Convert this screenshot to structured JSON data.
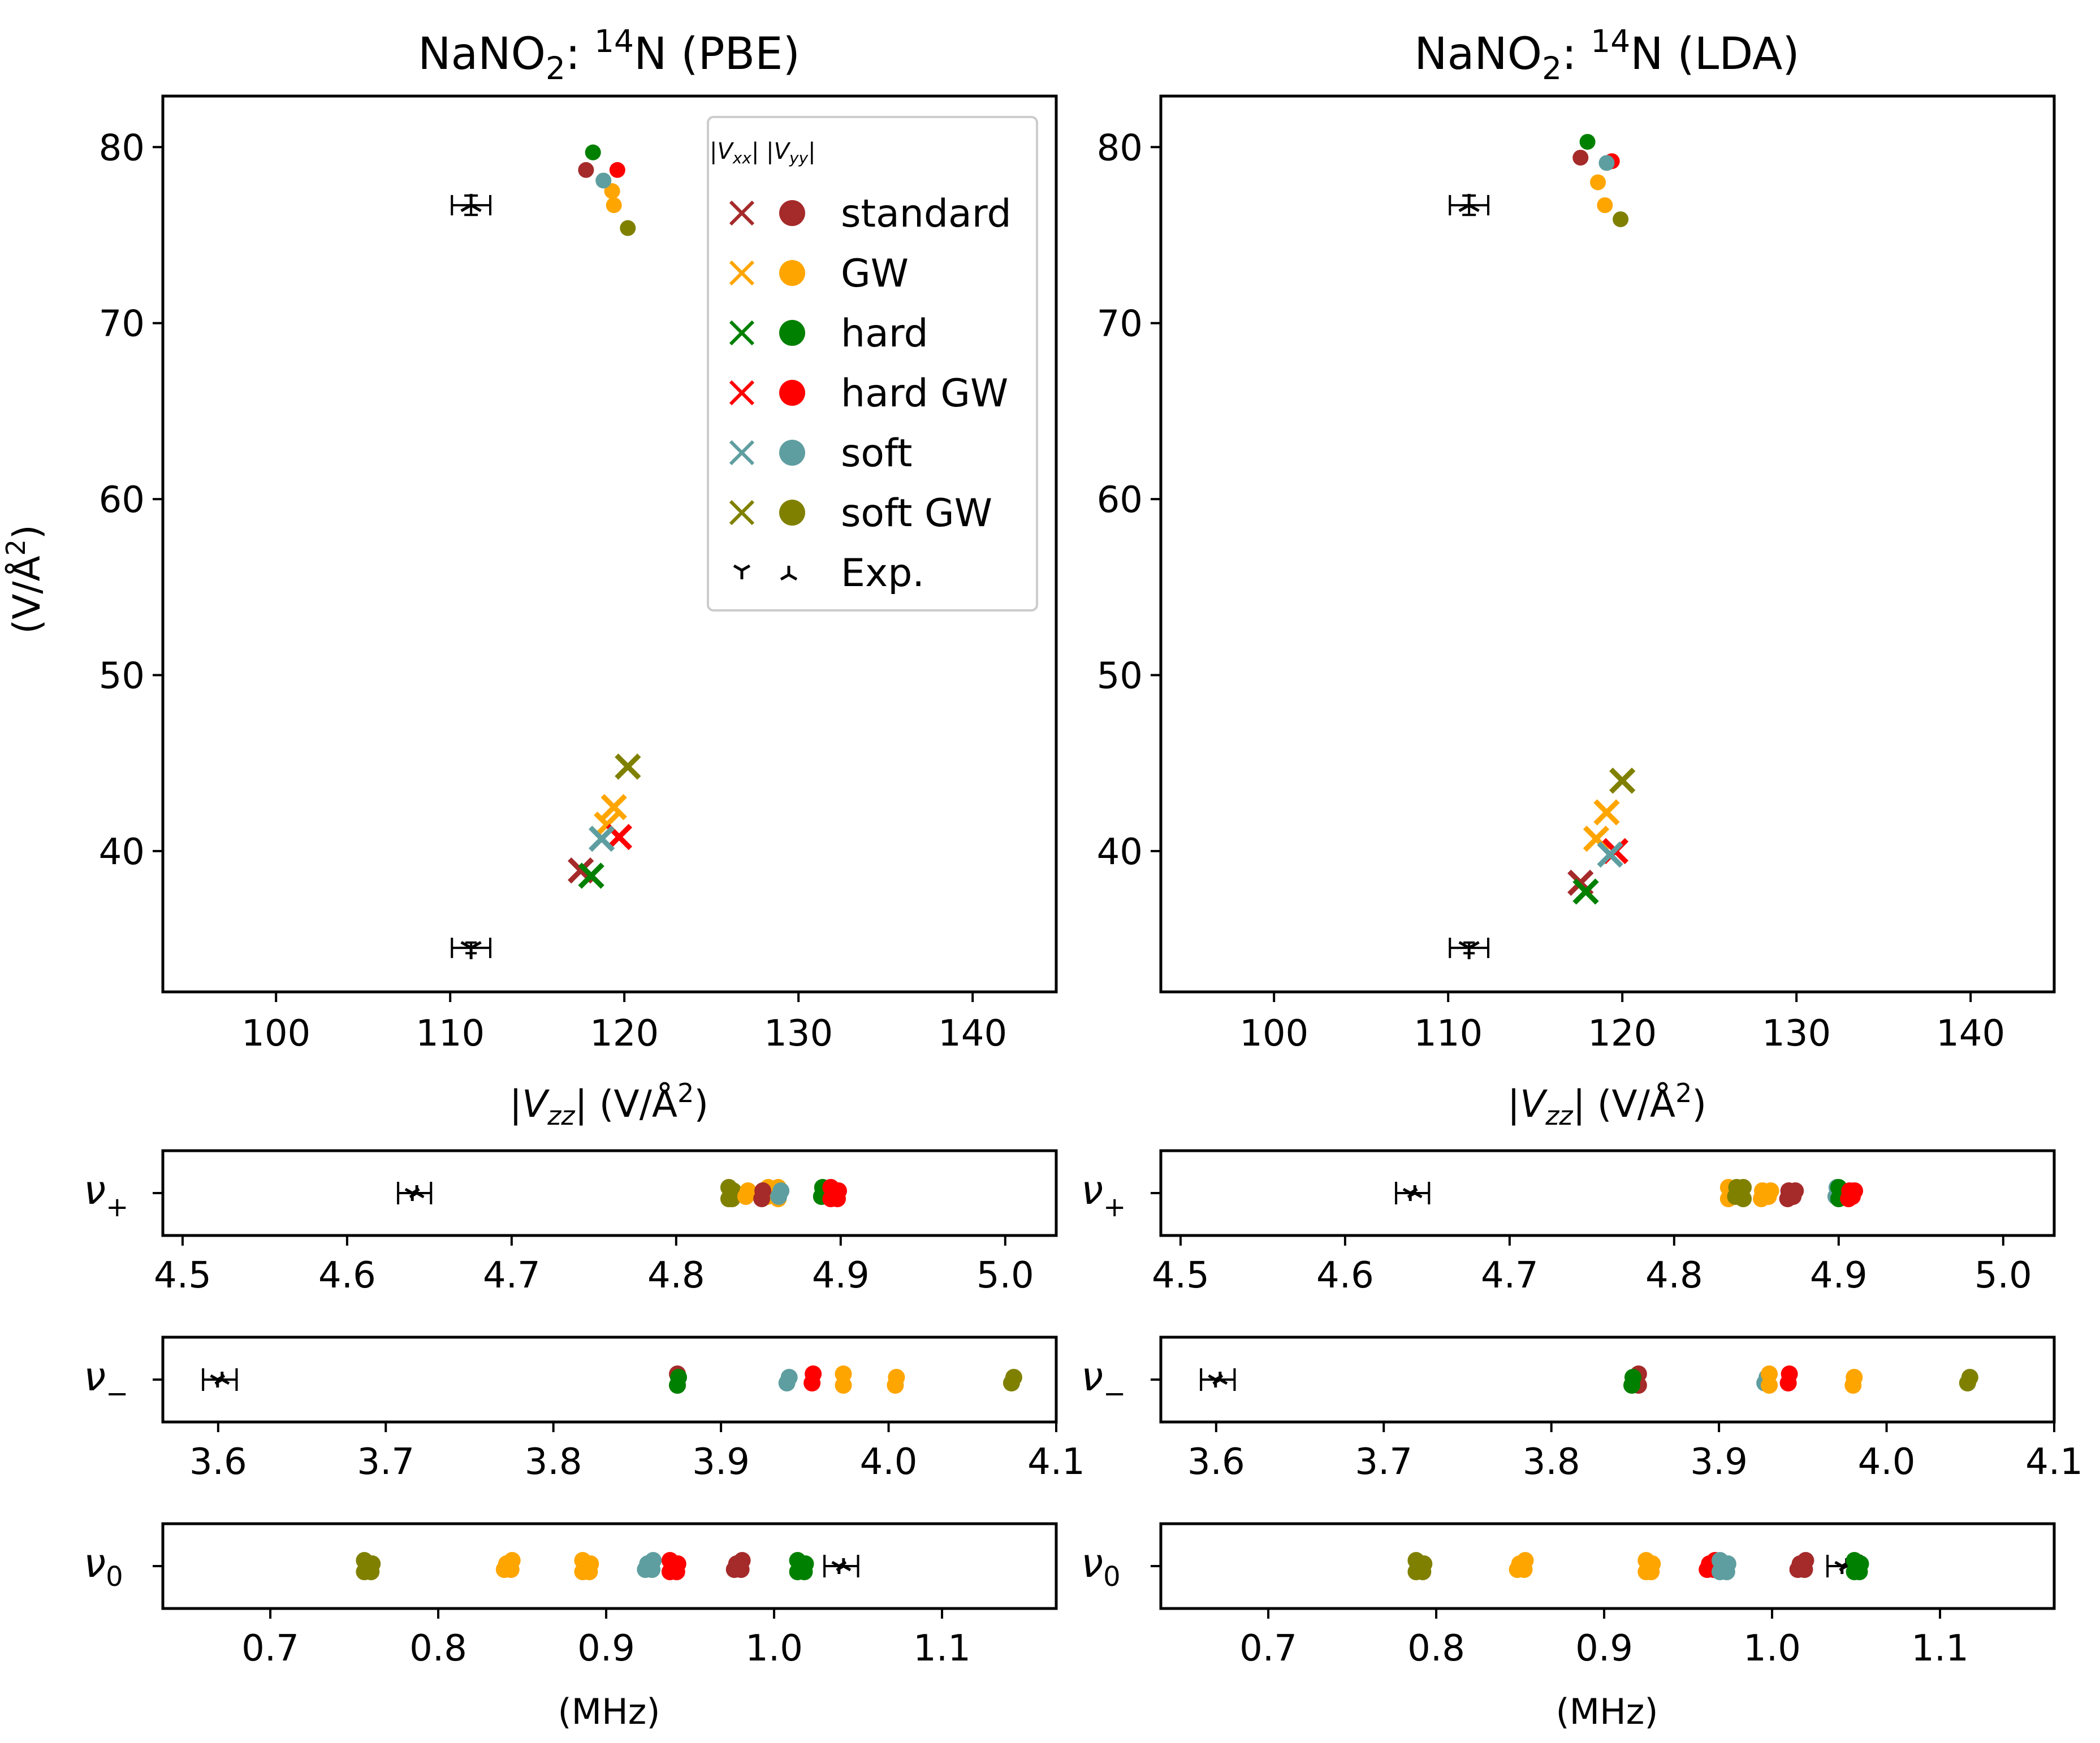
{
  "figure": {
    "legend": {
      "header": "|V_xx| |V_yy|",
      "entries": [
        {
          "label": "standard",
          "color": "#a52a2a"
        },
        {
          "label": "GW",
          "color": "#ffa500"
        },
        {
          "label": "hard",
          "color": "#008000"
        },
        {
          "label": "hard GW",
          "color": "#ff0000"
        },
        {
          "label": "soft",
          "color": "#5f9ea0"
        },
        {
          "label": "soft GW",
          "color": "#808000"
        },
        {
          "label": "Exp.",
          "color": "#000000"
        }
      ]
    }
  },
  "chart_data": [
    {
      "id": "pbe-main",
      "type": "scatter",
      "title": "NaNO2: 14N (PBE)",
      "xlabel": "|Vzz| (V/Å2)",
      "ylabel": "(V/Å2)",
      "xlim": [
        93.5,
        144.8
      ],
      "ylim": [
        32.0,
        82.9
      ],
      "xticks": [
        100,
        110,
        120,
        130,
        140
      ],
      "yticks": [
        40,
        50,
        60,
        70,
        80
      ],
      "series": [
        {
          "name": "standard",
          "color": "#a52a2a",
          "vxx": [
            [
              117.5,
              38.9
            ]
          ],
          "vyy": [
            [
              117.8,
              78.7
            ]
          ]
        },
        {
          "name": "GW",
          "color": "#ffa500",
          "vxx": [
            [
              119.4,
              42.5
            ],
            [
              119.0,
              41.5
            ]
          ],
          "vyy": [
            [
              119.3,
              77.5
            ],
            [
              119.4,
              76.7
            ]
          ]
        },
        {
          "name": "hard",
          "color": "#008000",
          "vxx": [
            [
              118.1,
              38.6
            ]
          ],
          "vyy": [
            [
              118.2,
              79.7
            ]
          ]
        },
        {
          "name": "hard GW",
          "color": "#ff0000",
          "vxx": [
            [
              119.7,
              40.8
            ]
          ],
          "vyy": [
            [
              119.6,
              78.7
            ]
          ]
        },
        {
          "name": "soft",
          "color": "#5f9ea0",
          "vxx": [
            [
              118.7,
              40.7
            ]
          ],
          "vyy": [
            [
              118.8,
              78.1
            ]
          ]
        },
        {
          "name": "soft GW",
          "color": "#808000",
          "vxx": [
            [
              120.2,
              44.8
            ]
          ],
          "vyy": [
            [
              120.2,
              75.4
            ]
          ]
        }
      ],
      "experiment": {
        "vzz": 111.2,
        "vzz_err": 1.1,
        "vyy": 76.7,
        "vyy_err": 0.55,
        "vxx": 34.5,
        "vxx_err": 0.3
      }
    },
    {
      "id": "lda-main",
      "type": "scatter",
      "title": "NaNO2: 14N (LDA)",
      "xlabel": "|Vzz| (V/Å2)",
      "xlim": [
        93.5,
        144.8
      ],
      "ylim": [
        32.0,
        82.9
      ],
      "xticks": [
        100,
        110,
        120,
        130,
        140
      ],
      "yticks": [
        40,
        50,
        60,
        70,
        80
      ],
      "series": [
        {
          "name": "standard",
          "color": "#a52a2a",
          "vxx": [
            [
              117.6,
              38.2
            ]
          ],
          "vyy": [
            [
              117.6,
              79.4
            ]
          ]
        },
        {
          "name": "GW",
          "color": "#ffa500",
          "vxx": [
            [
              119.1,
              42.2
            ],
            [
              118.5,
              40.7
            ]
          ],
          "vyy": [
            [
              118.6,
              78.0
            ],
            [
              119.0,
              76.7
            ]
          ]
        },
        {
          "name": "hard",
          "color": "#008000",
          "vxx": [
            [
              117.9,
              37.7
            ]
          ],
          "vyy": [
            [
              118.0,
              80.3
            ]
          ]
        },
        {
          "name": "hard GW",
          "color": "#ff0000",
          "vxx": [
            [
              119.6,
              40.0
            ]
          ],
          "vyy": [
            [
              119.4,
              79.2
            ]
          ]
        },
        {
          "name": "soft",
          "color": "#5f9ea0",
          "vxx": [
            [
              119.3,
              39.8
            ]
          ],
          "vyy": [
            [
              119.1,
              79.1
            ]
          ]
        },
        {
          "name": "soft GW",
          "color": "#808000",
          "vxx": [
            [
              120.0,
              44.0
            ]
          ],
          "vyy": [
            [
              119.9,
              75.9
            ]
          ]
        }
      ],
      "experiment": {
        "vzz": 111.2,
        "vzz_err": 1.1,
        "vyy": 76.7,
        "vyy_err": 0.55,
        "vxx": 34.5,
        "vxx_err": 0.3
      }
    },
    {
      "id": "pbe-nu-plus",
      "type": "strip",
      "ylabel": "ν+",
      "xlim": [
        4.488,
        5.031
      ],
      "xticks": [
        4.5,
        4.6,
        4.7,
        4.8,
        4.9,
        5.0
      ],
      "tick_labels": [
        "4.5",
        "4.6",
        "4.7",
        "4.8",
        "4.9",
        "5.0"
      ],
      "points": [
        {
          "color": "#808000",
          "values": [
            4.832,
            4.834
          ]
        },
        {
          "color": "#ffa500",
          "values": [
            4.843,
            4.856,
            4.862
          ]
        },
        {
          "color": "#a52a2a",
          "values": [
            4.852
          ]
        },
        {
          "color": "#5f9ea0",
          "values": [
            4.863
          ]
        },
        {
          "color": "#008000",
          "values": [
            4.889
          ]
        },
        {
          "color": "#ff0000",
          "values": [
            4.894,
            4.898
          ]
        }
      ],
      "experiment": {
        "value": 4.641,
        "err": 0.01
      }
    },
    {
      "id": "lda-nu-plus",
      "type": "strip",
      "ylabel": "ν+",
      "xlim": [
        4.488,
        5.031
      ],
      "xticks": [
        4.5,
        4.6,
        4.7,
        4.8,
        4.9,
        5.0
      ],
      "tick_labels": [
        "4.5",
        "4.6",
        "4.7",
        "4.8",
        "4.9",
        "5.0"
      ],
      "points": [
        {
          "color": "#ffa500",
          "values": [
            4.833,
            4.853,
            4.858
          ]
        },
        {
          "color": "#808000",
          "values": [
            4.838,
            4.842
          ]
        },
        {
          "color": "#a52a2a",
          "values": [
            4.869,
            4.873
          ]
        },
        {
          "color": "#5f9ea0",
          "values": [
            4.899
          ]
        },
        {
          "color": "#008000",
          "values": [
            4.9
          ]
        },
        {
          "color": "#ff0000",
          "values": [
            4.906,
            4.909
          ]
        }
      ],
      "experiment": {
        "value": 4.641,
        "err": 0.01
      }
    },
    {
      "id": "pbe-nu-minus",
      "type": "strip",
      "ylabel": "ν−",
      "xlim": [
        3.567,
        4.1
      ],
      "xticks": [
        3.6,
        3.7,
        3.8,
        3.9,
        4.0,
        4.1
      ],
      "tick_labels": [
        "3.6",
        "3.7",
        "3.8",
        "3.9",
        "4.0",
        "4.1"
      ],
      "points": [
        {
          "color": "#a52a2a",
          "values": [
            3.874
          ]
        },
        {
          "color": "#008000",
          "values": [
            3.874
          ]
        },
        {
          "color": "#5f9ea0",
          "values": [
            3.94
          ]
        },
        {
          "color": "#ff0000",
          "values": [
            3.955
          ]
        },
        {
          "color": "#ffa500",
          "values": [
            3.973,
            4.004
          ]
        },
        {
          "color": "#808000",
          "values": [
            4.074
          ]
        }
      ],
      "experiment": {
        "value": 3.601,
        "err": 0.01
      }
    },
    {
      "id": "lda-nu-minus",
      "type": "strip",
      "ylabel": "ν−",
      "xlim": [
        3.567,
        4.1
      ],
      "xticks": [
        3.6,
        3.7,
        3.8,
        3.9,
        4.0,
        4.1
      ],
      "tick_labels": [
        "3.6",
        "3.7",
        "3.8",
        "3.9",
        "4.0",
        "4.1"
      ],
      "points": [
        {
          "color": "#a52a2a",
          "values": [
            3.852
          ]
        },
        {
          "color": "#008000",
          "values": [
            3.848
          ]
        },
        {
          "color": "#5f9ea0",
          "values": [
            3.928
          ]
        },
        {
          "color": "#ff0000",
          "values": [
            3.942
          ]
        },
        {
          "color": "#ffa500",
          "values": [
            3.93,
            3.98
          ]
        },
        {
          "color": "#808000",
          "values": [
            4.049
          ]
        }
      ],
      "experiment": {
        "value": 3.601,
        "err": 0.01
      }
    },
    {
      "id": "pbe-nu-zero",
      "type": "strip",
      "ylabel": "ν0",
      "xlabel": "(MHz)",
      "xlim": [
        0.636,
        1.168
      ],
      "xticks": [
        0.7,
        0.8,
        0.9,
        1.0,
        1.1
      ],
      "tick_labels": [
        "0.7",
        "0.8",
        "0.9",
        "1.0",
        "1.1"
      ],
      "points": [
        {
          "color": "#808000",
          "values": [
            0.756,
            0.76
          ]
        },
        {
          "color": "#ffa500",
          "values": [
            0.84,
            0.844,
            0.886,
            0.89
          ]
        },
        {
          "color": "#5f9ea0",
          "values": [
            0.924,
            0.928
          ]
        },
        {
          "color": "#ff0000",
          "values": [
            0.938,
            0.942
          ]
        },
        {
          "color": "#a52a2a",
          "values": [
            0.977,
            0.981
          ]
        },
        {
          "color": "#008000",
          "values": [
            1.014,
            1.018
          ]
        }
      ],
      "experiment": {
        "value": 1.04,
        "err": 0.01
      }
    },
    {
      "id": "lda-nu-zero",
      "type": "strip",
      "ylabel": "ν0",
      "xlabel": "(MHz)",
      "xlim": [
        0.636,
        1.168
      ],
      "xticks": [
        0.7,
        0.8,
        0.9,
        1.0,
        1.1
      ],
      "tick_labels": [
        "0.7",
        "0.8",
        "0.9",
        "1.0",
        "1.1"
      ],
      "points": [
        {
          "color": "#808000",
          "values": [
            0.788,
            0.792
          ]
        },
        {
          "color": "#ffa500",
          "values": [
            0.849,
            0.853,
            0.925,
            0.928
          ]
        },
        {
          "color": "#ff0000",
          "values": [
            0.962,
            0.966
          ]
        },
        {
          "color": "#5f9ea0",
          "values": [
            0.969,
            0.973
          ]
        },
        {
          "color": "#a52a2a",
          "values": [
            1.016,
            1.02
          ]
        },
        {
          "color": "#008000",
          "values": [
            1.049,
            1.052
          ]
        }
      ],
      "experiment": {
        "value": 1.043,
        "err": 0.01
      }
    }
  ]
}
